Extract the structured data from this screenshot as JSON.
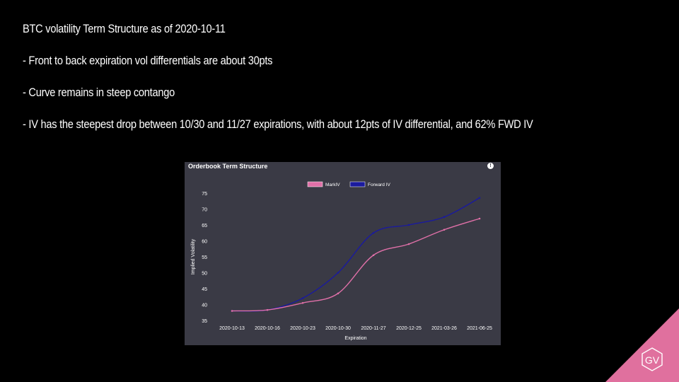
{
  "slide": {
    "bullets": [
      "BTC volatility Term Structure as of 2020-10-11",
      "- Front to back expiration vol differentials are about 30pts",
      "- Curve remains in steep contango",
      "- IV has the steepest drop between 10/30 and 11/27 expirations, with about 12pts of IV differential,  and 62% FWD IV"
    ],
    "logo_text": "GV",
    "logo_color": "#e0709e"
  },
  "panel": {
    "title": "Orderbook Term Structure",
    "info_icon": "info-icon",
    "background": "#3a3a45"
  },
  "chart_data": {
    "type": "line",
    "title": "",
    "xlabel": "Expiration",
    "ylabel": "Implied Volatility",
    "categories": [
      "2020-10-13",
      "2020-10-16",
      "2020-10-23",
      "2020-10-30",
      "2020-11-27",
      "2020-12-25",
      "2021-03-26",
      "2021-06-25"
    ],
    "ylim": [
      35,
      75
    ],
    "yticks": [
      35,
      40,
      45,
      50,
      55,
      60,
      65,
      70,
      75
    ],
    "legend": "top-center",
    "grid": false,
    "series": [
      {
        "name": "MarkIV",
        "color": "#e070a8",
        "values": [
          38.0,
          38.3,
          40.5,
          43.5,
          55.5,
          59.0,
          63.5,
          67.0
        ]
      },
      {
        "name": "Forward IV",
        "color": "#1a1a9e",
        "values": [
          38.0,
          38.3,
          42.0,
          50.0,
          62.5,
          65.0,
          67.5,
          73.5
        ]
      }
    ]
  }
}
